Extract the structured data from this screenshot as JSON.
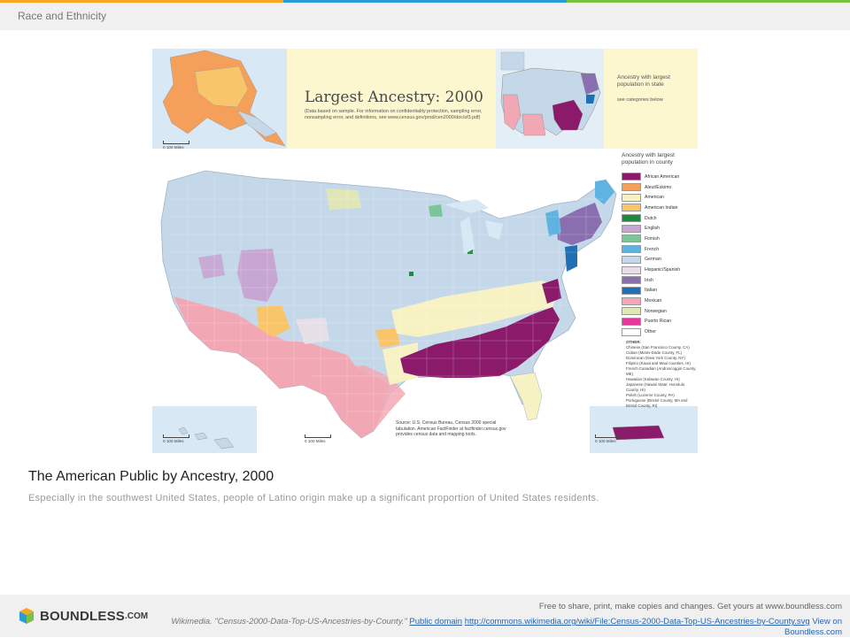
{
  "header": {
    "title": "Race and Ethnicity"
  },
  "figure": {
    "map_title": "Largest Ancestry: 2000",
    "map_note": "(Data based on sample. For information on confidentiality protection, sampling error, nonsampling error, and definitions, see www.census.gov/prod/cen2000/doc/sf3.pdf)",
    "state_legend_title": "Ancestry with largest population in state",
    "state_legend_sub": "see categories below",
    "county_legend_title": "Ancestry with largest population in county",
    "legend": [
      {
        "label": "African American",
        "color": "#8b1a6b"
      },
      {
        "label": "Aleut/Eskimo",
        "color": "#f4a05a"
      },
      {
        "label": "American",
        "color": "#f7f2c4"
      },
      {
        "label": "American Indian",
        "color": "#f9c56b"
      },
      {
        "label": "Dutch",
        "color": "#1e8a3e"
      },
      {
        "label": "English",
        "color": "#c7a6d4"
      },
      {
        "label": "Finnish",
        "color": "#7cc49a"
      },
      {
        "label": "French",
        "color": "#5fb3e0"
      },
      {
        "label": "German",
        "color": "#c5d8ea"
      },
      {
        "label": "Hispanic/Spanish",
        "color": "#e6dfe8"
      },
      {
        "label": "Irish",
        "color": "#8a6fb0"
      },
      {
        "label": "Italian",
        "color": "#1f6fb5"
      },
      {
        "label": "Mexican",
        "color": "#f2a8b4"
      },
      {
        "label": "Norwegian",
        "color": "#e1e6b6"
      },
      {
        "label": "Puerto Rican",
        "color": "#e63a9a"
      },
      {
        "label": "Other",
        "color": "#ffffff"
      }
    ],
    "other_heading": "OTHER:",
    "other_items": [
      "Chinese (San Francisco County, CA)",
      "Cuban (Miami-Dade County, FL)",
      "Dominican (New York County, NY)",
      "Filipino (Kauai and Maui counties, HI)",
      "French Canadian (Androscoggin County, ME)",
      "Hawaiian (Kalawao County, HI)",
      "Japanese (Hawaii State; Honolulu County, HI)",
      "Polish (Luzerne County, PA)",
      "Portuguese (Bristol County, MA and Bristol County, RI)"
    ],
    "source": "Source: U.S. Census Bureau, Census 2000 special tabulation. American FactFinder at factfinder.census.gov provides census data and mapping tools.",
    "scale_label": "0      100 Miles"
  },
  "caption": {
    "title": "The American Public by Ancestry, 2000",
    "description": "Especially in the southwest United States, people of Latino origin make up a significant proportion of United States residents."
  },
  "footer": {
    "logo": "BOUNDLESS",
    "logo_suffix": ".COM",
    "free_text": "Free to share, print, make copies and changes. Get yours at www.boundless.com",
    "attribution_prefix": "Wikimedia. \"Census-2000-Data-Top-US-Ancestries-by-County.\"",
    "license_link": "Public domain",
    "source_link": "http://commons.wikimedia.org/wiki/File:Census-2000-Data-Top-US-Ancestries-by-County.svg",
    "view_link": "View on Boundless.com"
  }
}
